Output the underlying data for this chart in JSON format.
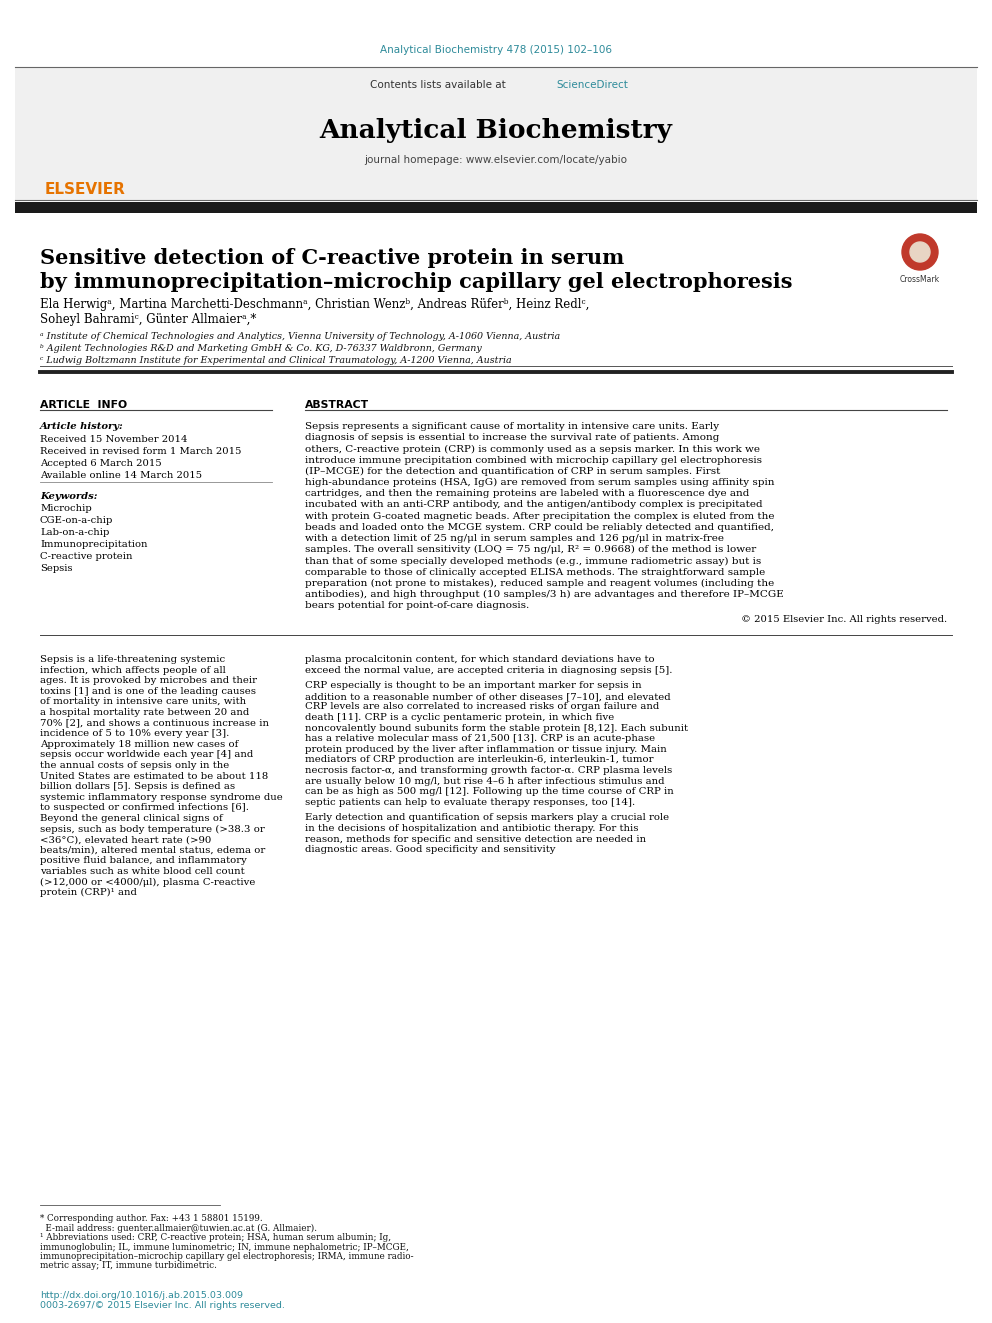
{
  "journal_ref": "Analytical Biochemistry 478 (2015) 102–106",
  "journal_ref_color": "#2e8b9a",
  "contents_text": "Contents lists available at",
  "sciencedirect_text": "ScienceDirect",
  "sciencedirect_color": "#2e8b9a",
  "journal_name": "Analytical Biochemistry",
  "journal_homepage": "journal homepage: www.elsevier.com/locate/yabio",
  "article_title_line1": "Sensitive detection of C-reactive protein in serum",
  "article_title_line2": "by immunoprecipitation–microchip capillary gel electrophoresis",
  "authors": "Ela Herwigᵃ, Martina Marchetti-Deschmannᵃ, Christian Wenzᵇ, Andreas Rüferᵇ, Heinz Redlᶜ,",
  "authors2": "Soheyl Bahramiᶜ, Günter Allmaierᵃ,*",
  "affil_a": "ᵃ Institute of Chemical Technologies and Analytics, Vienna University of Technology, A-1060 Vienna, Austria",
  "affil_b": "ᵇ Agilent Technologies R&D and Marketing GmbH & Co. KG, D-76337 Waldbronn, Germany",
  "affil_c": "ᶜ Ludwig Boltzmann Institute for Experimental and Clinical Traumatology, A-1200 Vienna, Austria",
  "article_info_title": "ARTICLE  INFO",
  "abstract_title": "ABSTRACT",
  "article_history_label": "Article history:",
  "received1": "Received 15 November 2014",
  "received2": "Received in revised form 1 March 2015",
  "accepted": "Accepted 6 March 2015",
  "available": "Available online 14 March 2015",
  "keywords_label": "Keywords:",
  "keywords": [
    "Microchip",
    "CGE-on-a-chip",
    "Lab-on-a-chip",
    "Immunoprecipitation",
    "C-reactive protein",
    "Sepsis"
  ],
  "abstract_text": "Sepsis represents a significant cause of mortality in intensive care units. Early diagnosis of sepsis is essential to increase the survival rate of patients. Among others, C-reactive protein (CRP) is commonly used as a sepsis marker. In this work we introduce immune precipitation combined with microchip capillary gel electrophoresis (IP–MCGE) for the detection and quantification of CRP in serum samples. First high-abundance proteins (HSA, IgG) are removed from serum samples using affinity spin cartridges, and then the remaining proteins are labeled with a fluorescence dye and incubated with an anti-CRP antibody, and the antigen/antibody complex is precipitated with protein G-coated magnetic beads. After precipitation the complex is eluted from the beads and loaded onto the MCGE system. CRP could be reliably detected and quantified, with a detection limit of 25 ng/μl in serum samples and 126 pg/μl in matrix-free samples. The overall sensitivity (LOQ = 75 ng/μl, R² = 0.9668) of the method is lower than that of some specially developed methods (e.g., immune radiometric assay) but is comparable to those of clinically accepted ELISA methods. The straightforward sample preparation (not prone to mistakes), reduced sample and reagent volumes (including the antibodies), and high throughput (10 samples/3 h) are advantages and therefore IP–MCGE bears potential for point-of-care diagnosis.",
  "copyright": "© 2015 Elsevier Inc. All rights reserved.",
  "body_col1": "Sepsis is a life-threatening systemic infection, which affects people of all ages. It is provoked by microbes and their toxins [1] and is one of the leading causes of mortality in intensive care units, with a hospital mortality rate between 20 and 70% [2], and shows a continuous increase in incidence of 5 to 10% every year [3]. Approximately 18 million new cases of sepsis occur worldwide each year [4] and the annual costs of sepsis only in the United States are estimated to be about 118 billion dollars [5]. Sepsis is defined as systemic inflammatory response syndrome due to suspected or confirmed infections [6]. Beyond the general clinical signs of sepsis, such as body temperature (>38.3 or <36°C), elevated heart rate (>90 beats/min), altered mental status, edema or positive fluid balance, and inflammatory variables such as white blood cell count (>12,000 or <4000/μl), plasma C-reactive protein (CRP)¹ and",
  "body_col1_footnote_lines": [
    "* Corresponding author. Fax: +43 1 58801 15199.",
    "  E-mail address: guenter.allmaier@tuwien.ac.at (G. Allmaier).",
    "¹ Abbreviations used: CRP, C-reactive protein; HSA, human serum albumin; Ig,",
    "immunoglobulin; IL, immune luminometric; IN, immune nephalometric; IP–MCGE,",
    "immunoprecipitation–microchip capillary gel electrophoresis; IRMA, immune radio-",
    "metric assay; IT, immune turbidimetric."
  ],
  "body_col1_doi_lines": [
    "http://dx.doi.org/10.1016/j.ab.2015.03.009",
    "0003-2697/© 2015 Elsevier Inc. All rights reserved."
  ],
  "body_col2": "plasma procalcitonin content, for which standard deviations have to exceed the normal value, are accepted criteria in diagnosing sepsis [5].\n\n   CRP especially is thought to be an important marker for sepsis in addition to a reasonable number of other diseases [7–10], and elevated CRP levels are also correlated to increased risks of organ failure and death [11]. CRP is a cyclic pentameric protein, in which five noncovalently bound subunits form the stable protein [8,12]. Each subunit has a relative molecular mass of 21,500 [13]. CRP is an acute-phase protein produced by the liver after inflammation or tissue injury. Main mediators of CRP production are interleukin-6, interleukin-1, tumor necrosis factor-α, and transforming growth factor-α. CRP plasma levels are usually below 10 mg/l, but rise 4–6 h after infectious stimulus and can be as high as 500 mg/l [12]. Following up the time course of CRP in septic patients can help to evaluate therapy responses, too [14].\n\n   Early detection and quantification of sepsis markers play a crucial role in the decisions of hospitalization and antibiotic therapy. For this reason, methods for specific and sensitive detection are needed in diagnostic areas. Good specificity and sensitivity",
  "bg_color": "#ffffff",
  "header_bg_color": "#f0f0f0",
  "black_bar_color": "#1a1a1a",
  "title_color": "#000000",
  "text_color": "#000000",
  "orange_color": "#e67300",
  "link_color": "#2e8b9a"
}
